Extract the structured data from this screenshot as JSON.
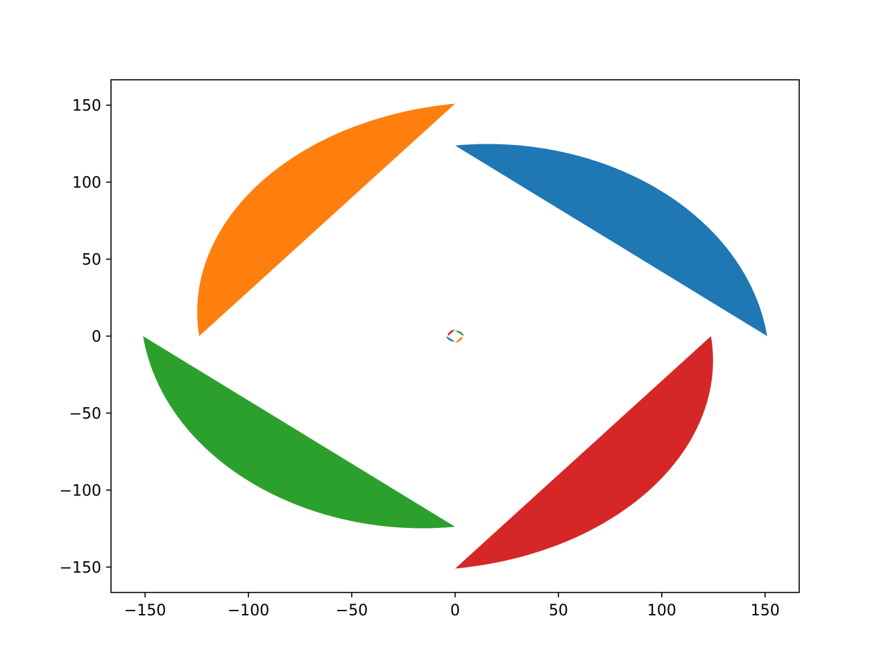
{
  "chart_data": {
    "type": "area",
    "title": "",
    "xlabel": "",
    "ylabel": "",
    "xlim": [
      -166.5,
      166.5
    ],
    "ylim": [
      -166.5,
      166.5
    ],
    "x_ticks": [
      -150,
      -100,
      -50,
      0,
      50,
      100,
      150
    ],
    "y_ticks": [
      -150,
      -100,
      -50,
      0,
      50,
      100,
      150
    ],
    "x_tick_labels": [
      "−150",
      "−100",
      "−50",
      "0",
      "50",
      "100",
      "150"
    ],
    "y_tick_labels": [
      "−150",
      "−100",
      "−50",
      "0",
      "50",
      "100",
      "150"
    ],
    "grid": false,
    "legend": "none",
    "spiral": {
      "description_of_shape": "four interleaved logarithmic spiral arms filled between two offset spiral curves",
      "arms": 4,
      "outer_radius": 151,
      "start_angle_deg": 0,
      "turns": 4.5,
      "decay_per_quarter_turn": 0.82
    },
    "series": [
      {
        "color": "#1f77b4",
        "phase_deg": 0
      },
      {
        "color": "#ff7f0e",
        "phase_deg": 90
      },
      {
        "color": "#2ca02c",
        "phase_deg": 180
      },
      {
        "color": "#d62728",
        "phase_deg": 270
      }
    ]
  }
}
